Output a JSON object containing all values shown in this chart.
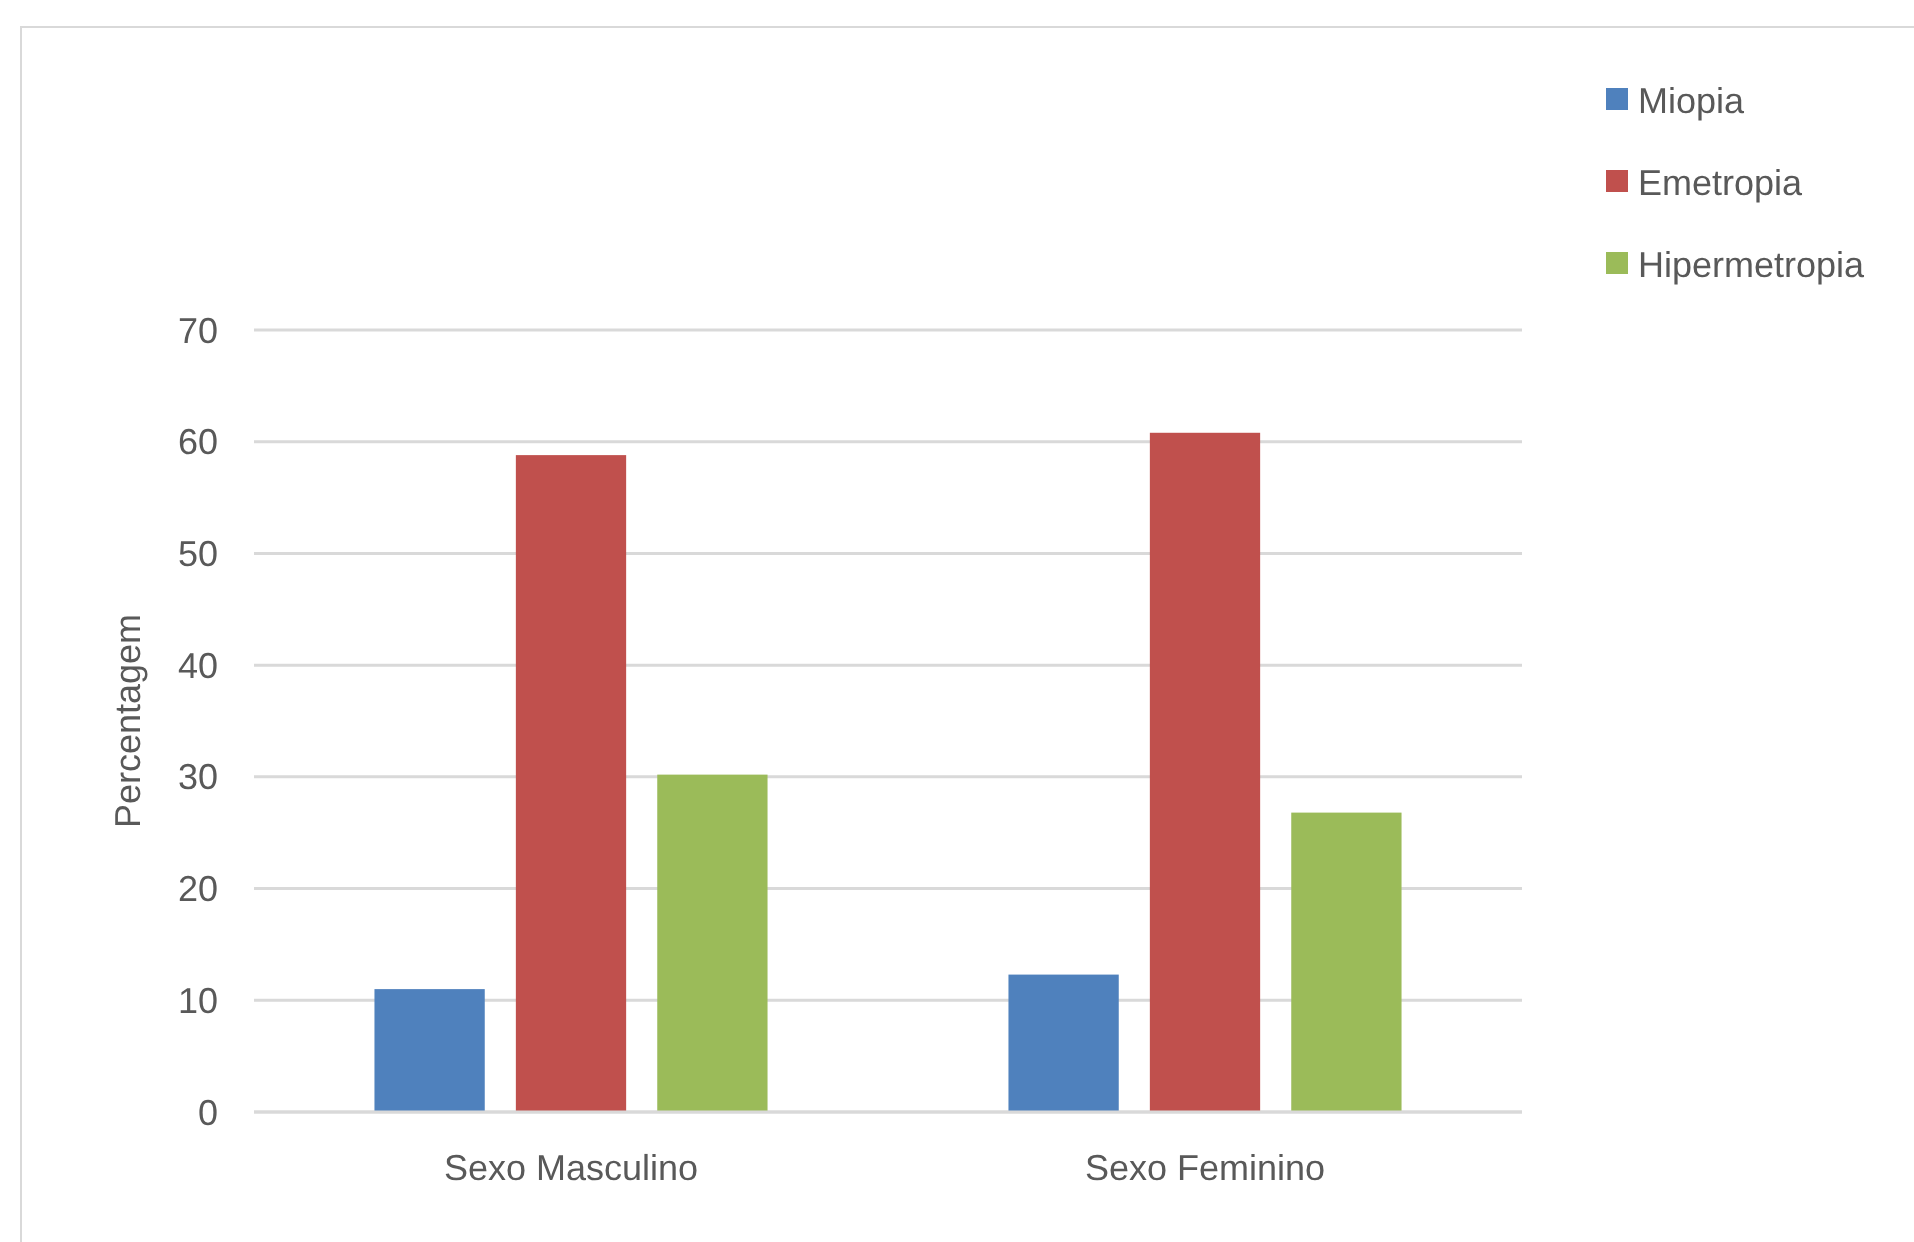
{
  "chart_data": {
    "type": "bar",
    "ylabel": "Percentagem",
    "categories": [
      "Sexo Masculino",
      "Sexo Feminino"
    ],
    "series": [
      {
        "name": "Miopia",
        "color": "#4f81bd",
        "values": [
          11.0,
          12.3
        ]
      },
      {
        "name": "Emetropia",
        "color": "#c0504d",
        "values": [
          58.8,
          60.8
        ]
      },
      {
        "name": "Hipermetropia",
        "color": "#9bbb59",
        "values": [
          30.2,
          26.8
        ]
      }
    ],
    "ylim": [
      0,
      70
    ],
    "yticks": [
      0,
      10,
      20,
      30,
      40,
      50,
      60,
      70
    ],
    "grid": "y",
    "legend": "top right"
  }
}
